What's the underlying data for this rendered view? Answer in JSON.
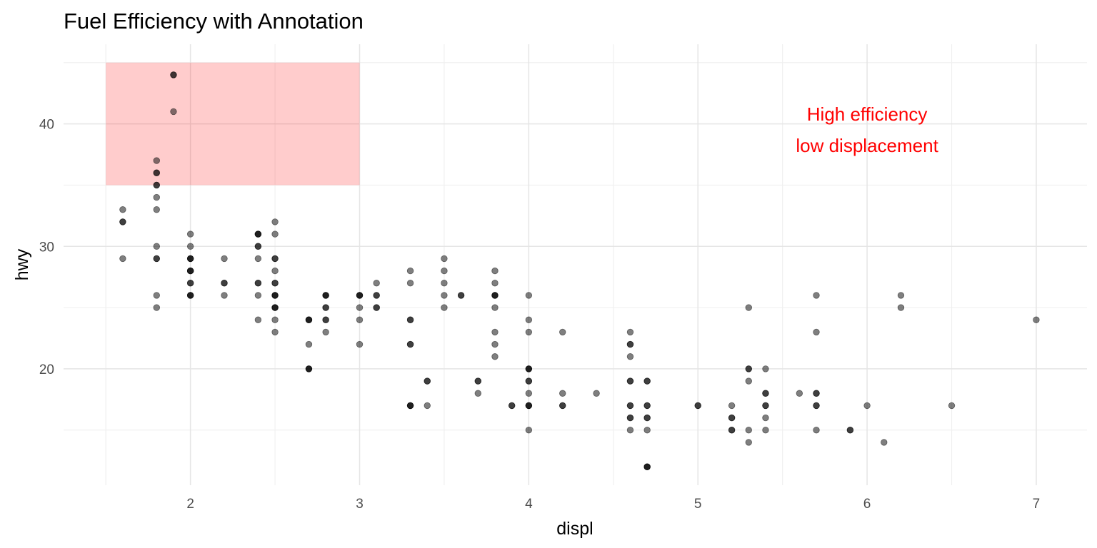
{
  "chart_data": {
    "type": "scatter",
    "title": "Fuel Efficiency with Annotation",
    "xlabel": "displ",
    "ylabel": "hwy",
    "xlim": [
      1.25,
      7.3
    ],
    "ylim": [
      10.5,
      46.5
    ],
    "x_ticks": [
      2,
      3,
      4,
      5,
      6,
      7
    ],
    "x_tick_labels": [
      "2",
      "3",
      "4",
      "5",
      "6",
      "7"
    ],
    "y_ticks": [
      20,
      30,
      40
    ],
    "y_tick_labels": [
      "20",
      "30",
      "40"
    ],
    "grid": true,
    "point_color": "#000000",
    "point_alpha": 0.5,
    "highlight_rect": {
      "xmin": 1.5,
      "xmax": 3.0,
      "ymin": 35,
      "ymax": 45,
      "fill": "#ff0000",
      "alpha": 0.2
    },
    "annotation": {
      "x": 6.0,
      "y": 39.5,
      "lines": [
        "High efficiency",
        "low displacement"
      ],
      "color": "#ff0000"
    },
    "points": [
      [
        1.6,
        33
      ],
      [
        1.6,
        32
      ],
      [
        1.6,
        32
      ],
      [
        1.6,
        29
      ],
      [
        1.8,
        37
      ],
      [
        1.8,
        36
      ],
      [
        1.8,
        36
      ],
      [
        1.8,
        35
      ],
      [
        1.8,
        35
      ],
      [
        1.8,
        34
      ],
      [
        1.8,
        33
      ],
      [
        1.8,
        30
      ],
      [
        1.8,
        29
      ],
      [
        1.8,
        29
      ],
      [
        1.8,
        26
      ],
      [
        1.8,
        25
      ],
      [
        1.9,
        44
      ],
      [
        1.9,
        44
      ],
      [
        1.9,
        41
      ],
      [
        2.0,
        31
      ],
      [
        2.0,
        30
      ],
      [
        2.0,
        29
      ],
      [
        2.0,
        29
      ],
      [
        2.0,
        29
      ],
      [
        2.0,
        28
      ],
      [
        2.0,
        28
      ],
      [
        2.0,
        28
      ],
      [
        2.0,
        27
      ],
      [
        2.0,
        27
      ],
      [
        2.0,
        26
      ],
      [
        2.0,
        26
      ],
      [
        2.0,
        26
      ],
      [
        2.2,
        29
      ],
      [
        2.2,
        27
      ],
      [
        2.2,
        27
      ],
      [
        2.2,
        26
      ],
      [
        2.4,
        31
      ],
      [
        2.4,
        31
      ],
      [
        2.4,
        31
      ],
      [
        2.4,
        30
      ],
      [
        2.4,
        30
      ],
      [
        2.4,
        29
      ],
      [
        2.4,
        27
      ],
      [
        2.4,
        27
      ],
      [
        2.4,
        26
      ],
      [
        2.4,
        24
      ],
      [
        2.5,
        32
      ],
      [
        2.5,
        31
      ],
      [
        2.5,
        29
      ],
      [
        2.5,
        29
      ],
      [
        2.5,
        28
      ],
      [
        2.5,
        27
      ],
      [
        2.5,
        27
      ],
      [
        2.5,
        26
      ],
      [
        2.5,
        26
      ],
      [
        2.5,
        26
      ],
      [
        2.5,
        25
      ],
      [
        2.5,
        25
      ],
      [
        2.5,
        25
      ],
      [
        2.5,
        24
      ],
      [
        2.5,
        23
      ],
      [
        2.7,
        24
      ],
      [
        2.7,
        24
      ],
      [
        2.7,
        24
      ],
      [
        2.7,
        22
      ],
      [
        2.7,
        20
      ],
      [
        2.7,
        20
      ],
      [
        2.7,
        20
      ],
      [
        2.8,
        26
      ],
      [
        2.8,
        26
      ],
      [
        2.8,
        26
      ],
      [
        2.8,
        25
      ],
      [
        2.8,
        25
      ],
      [
        2.8,
        24
      ],
      [
        2.8,
        24
      ],
      [
        2.8,
        23
      ],
      [
        3.0,
        26
      ],
      [
        3.0,
        26
      ],
      [
        3.0,
        26
      ],
      [
        3.0,
        25
      ],
      [
        3.0,
        24
      ],
      [
        3.0,
        22
      ],
      [
        3.1,
        27
      ],
      [
        3.1,
        26
      ],
      [
        3.1,
        26
      ],
      [
        3.1,
        25
      ],
      [
        3.1,
        25
      ],
      [
        3.3,
        28
      ],
      [
        3.3,
        27
      ],
      [
        3.3,
        24
      ],
      [
        3.3,
        24
      ],
      [
        3.3,
        22
      ],
      [
        3.3,
        22
      ],
      [
        3.3,
        17
      ],
      [
        3.3,
        17
      ],
      [
        3.3,
        17
      ],
      [
        3.4,
        19
      ],
      [
        3.4,
        19
      ],
      [
        3.4,
        17
      ],
      [
        3.5,
        29
      ],
      [
        3.5,
        28
      ],
      [
        3.5,
        27
      ],
      [
        3.5,
        26
      ],
      [
        3.5,
        25
      ],
      [
        3.6,
        26
      ],
      [
        3.6,
        26
      ],
      [
        3.7,
        19
      ],
      [
        3.7,
        19
      ],
      [
        3.7,
        18
      ],
      [
        3.8,
        28
      ],
      [
        3.8,
        27
      ],
      [
        3.8,
        26
      ],
      [
        3.8,
        26
      ],
      [
        3.8,
        26
      ],
      [
        3.8,
        25
      ],
      [
        3.8,
        23
      ],
      [
        3.8,
        22
      ],
      [
        3.8,
        21
      ],
      [
        3.9,
        17
      ],
      [
        3.9,
        17
      ],
      [
        4.0,
        26
      ],
      [
        4.0,
        24
      ],
      [
        4.0,
        23
      ],
      [
        4.0,
        20
      ],
      [
        4.0,
        20
      ],
      [
        4.0,
        20
      ],
      [
        4.0,
        19
      ],
      [
        4.0,
        19
      ],
      [
        4.0,
        18
      ],
      [
        4.0,
        17
      ],
      [
        4.0,
        17
      ],
      [
        4.0,
        17
      ],
      [
        4.0,
        15
      ],
      [
        4.2,
        23
      ],
      [
        4.2,
        18
      ],
      [
        4.2,
        17
      ],
      [
        4.2,
        17
      ],
      [
        4.4,
        18
      ],
      [
        4.6,
        23
      ],
      [
        4.6,
        22
      ],
      [
        4.6,
        22
      ],
      [
        4.6,
        21
      ],
      [
        4.6,
        19
      ],
      [
        4.6,
        19
      ],
      [
        4.6,
        17
      ],
      [
        4.6,
        17
      ],
      [
        4.6,
        16
      ],
      [
        4.6,
        16
      ],
      [
        4.6,
        15
      ],
      [
        4.7,
        19
      ],
      [
        4.7,
        19
      ],
      [
        4.7,
        17
      ],
      [
        4.7,
        17
      ],
      [
        4.7,
        16
      ],
      [
        4.7,
        16
      ],
      [
        4.7,
        15
      ],
      [
        4.7,
        12
      ],
      [
        4.7,
        12
      ],
      [
        4.7,
        12
      ],
      [
        5.0,
        17
      ],
      [
        5.0,
        17
      ],
      [
        5.2,
        17
      ],
      [
        5.2,
        16
      ],
      [
        5.2,
        16
      ],
      [
        5.2,
        15
      ],
      [
        5.2,
        15
      ],
      [
        5.3,
        25
      ],
      [
        5.3,
        20
      ],
      [
        5.3,
        20
      ],
      [
        5.3,
        19
      ],
      [
        5.3,
        15
      ],
      [
        5.3,
        14
      ],
      [
        5.4,
        20
      ],
      [
        5.4,
        18
      ],
      [
        5.4,
        18
      ],
      [
        5.4,
        17
      ],
      [
        5.4,
        17
      ],
      [
        5.4,
        16
      ],
      [
        5.4,
        15
      ],
      [
        5.6,
        18
      ],
      [
        5.7,
        26
      ],
      [
        5.7,
        23
      ],
      [
        5.7,
        18
      ],
      [
        5.7,
        18
      ],
      [
        5.7,
        17
      ],
      [
        5.7,
        17
      ],
      [
        5.7,
        15
      ],
      [
        5.9,
        15
      ],
      [
        5.9,
        15
      ],
      [
        6.0,
        17
      ],
      [
        6.1,
        14
      ],
      [
        6.2,
        26
      ],
      [
        6.2,
        25
      ],
      [
        6.5,
        17
      ],
      [
        7.0,
        24
      ]
    ]
  }
}
